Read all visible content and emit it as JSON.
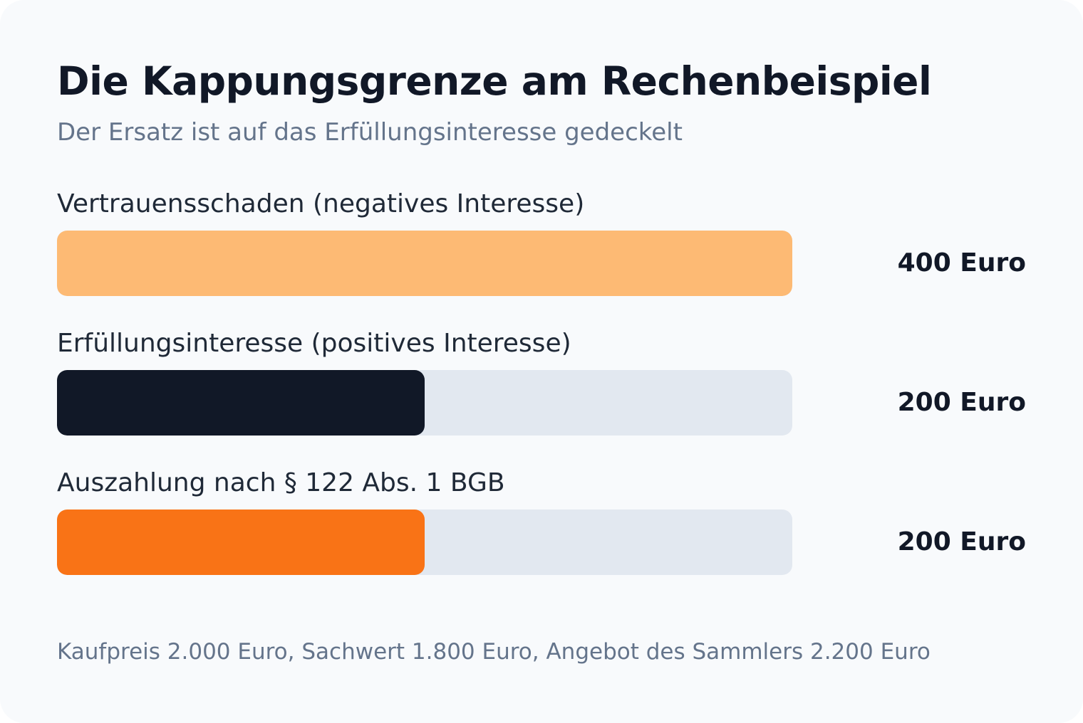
{
  "title": "Die Kappungsgrenze am Rechenbeispiel",
  "subtitle": "Der Ersatz ist auf das Erfüllungsinteresse gedeckelt",
  "note": "Kaufpreis 2.000 Euro, Sachwert 1.800 Euro, Angebot des Sammlers 2.200 Euro",
  "colors": {
    "track": "#e2e8f0",
    "vertrauensschaden": "#fdba74",
    "erfuellungsinteresse": "#111827",
    "auszahlung": "#f97316"
  },
  "chart_data": {
    "type": "bar",
    "orientation": "horizontal",
    "title": "Die Kappungsgrenze am Rechenbeispiel",
    "subtitle": "Der Ersatz ist auf das Erfüllungsinteresse gedeckelt",
    "xlim": [
      0,
      400
    ],
    "unit": "Euro",
    "categories": [
      "Vertrauensschaden (negatives Interesse)",
      "Erfüllungsinteresse (positives Interesse)",
      "Auszahlung nach § 122 Abs. 1 BGB"
    ],
    "values": [
      400,
      200,
      200
    ],
    "value_labels": [
      "400 Euro",
      "200 Euro",
      "200 Euro"
    ],
    "bar_colors": [
      "#fdba74",
      "#111827",
      "#f97316"
    ],
    "grid": false
  }
}
